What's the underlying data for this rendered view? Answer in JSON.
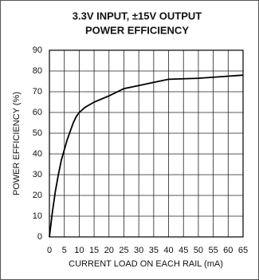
{
  "chart_data": {
    "type": "line",
    "title": [
      "3.3V INPUT, ±15V OUTPUT",
      "POWER EFFICIENCY"
    ],
    "x_label": "CURRENT LOAD ON EACH RAIL (mA)",
    "y_label": "POWER EFFICIENCY (%)",
    "x": [
      0,
      1,
      2,
      3,
      4,
      5,
      6,
      7,
      8,
      9,
      10,
      12,
      15,
      20,
      25,
      30,
      35,
      40,
      50,
      60,
      65
    ],
    "series": [
      {
        "color": "#000000",
        "values": [
          0,
          12,
          22,
          30,
          37,
          42,
          47,
          51,
          55,
          58,
          60,
          62.5,
          65,
          68,
          71.5,
          73,
          74.5,
          76,
          76.5,
          77.5,
          78
        ]
      }
    ],
    "xlim": [
      0,
      65
    ],
    "xticks": [
      0,
      5,
      10,
      15,
      20,
      25,
      30,
      35,
      40,
      45,
      50,
      55,
      60,
      65
    ],
    "ylim": [
      0,
      90
    ],
    "yticks": [
      0,
      10,
      20,
      30,
      40,
      50,
      60,
      70,
      80,
      90
    ],
    "grid": true
  }
}
